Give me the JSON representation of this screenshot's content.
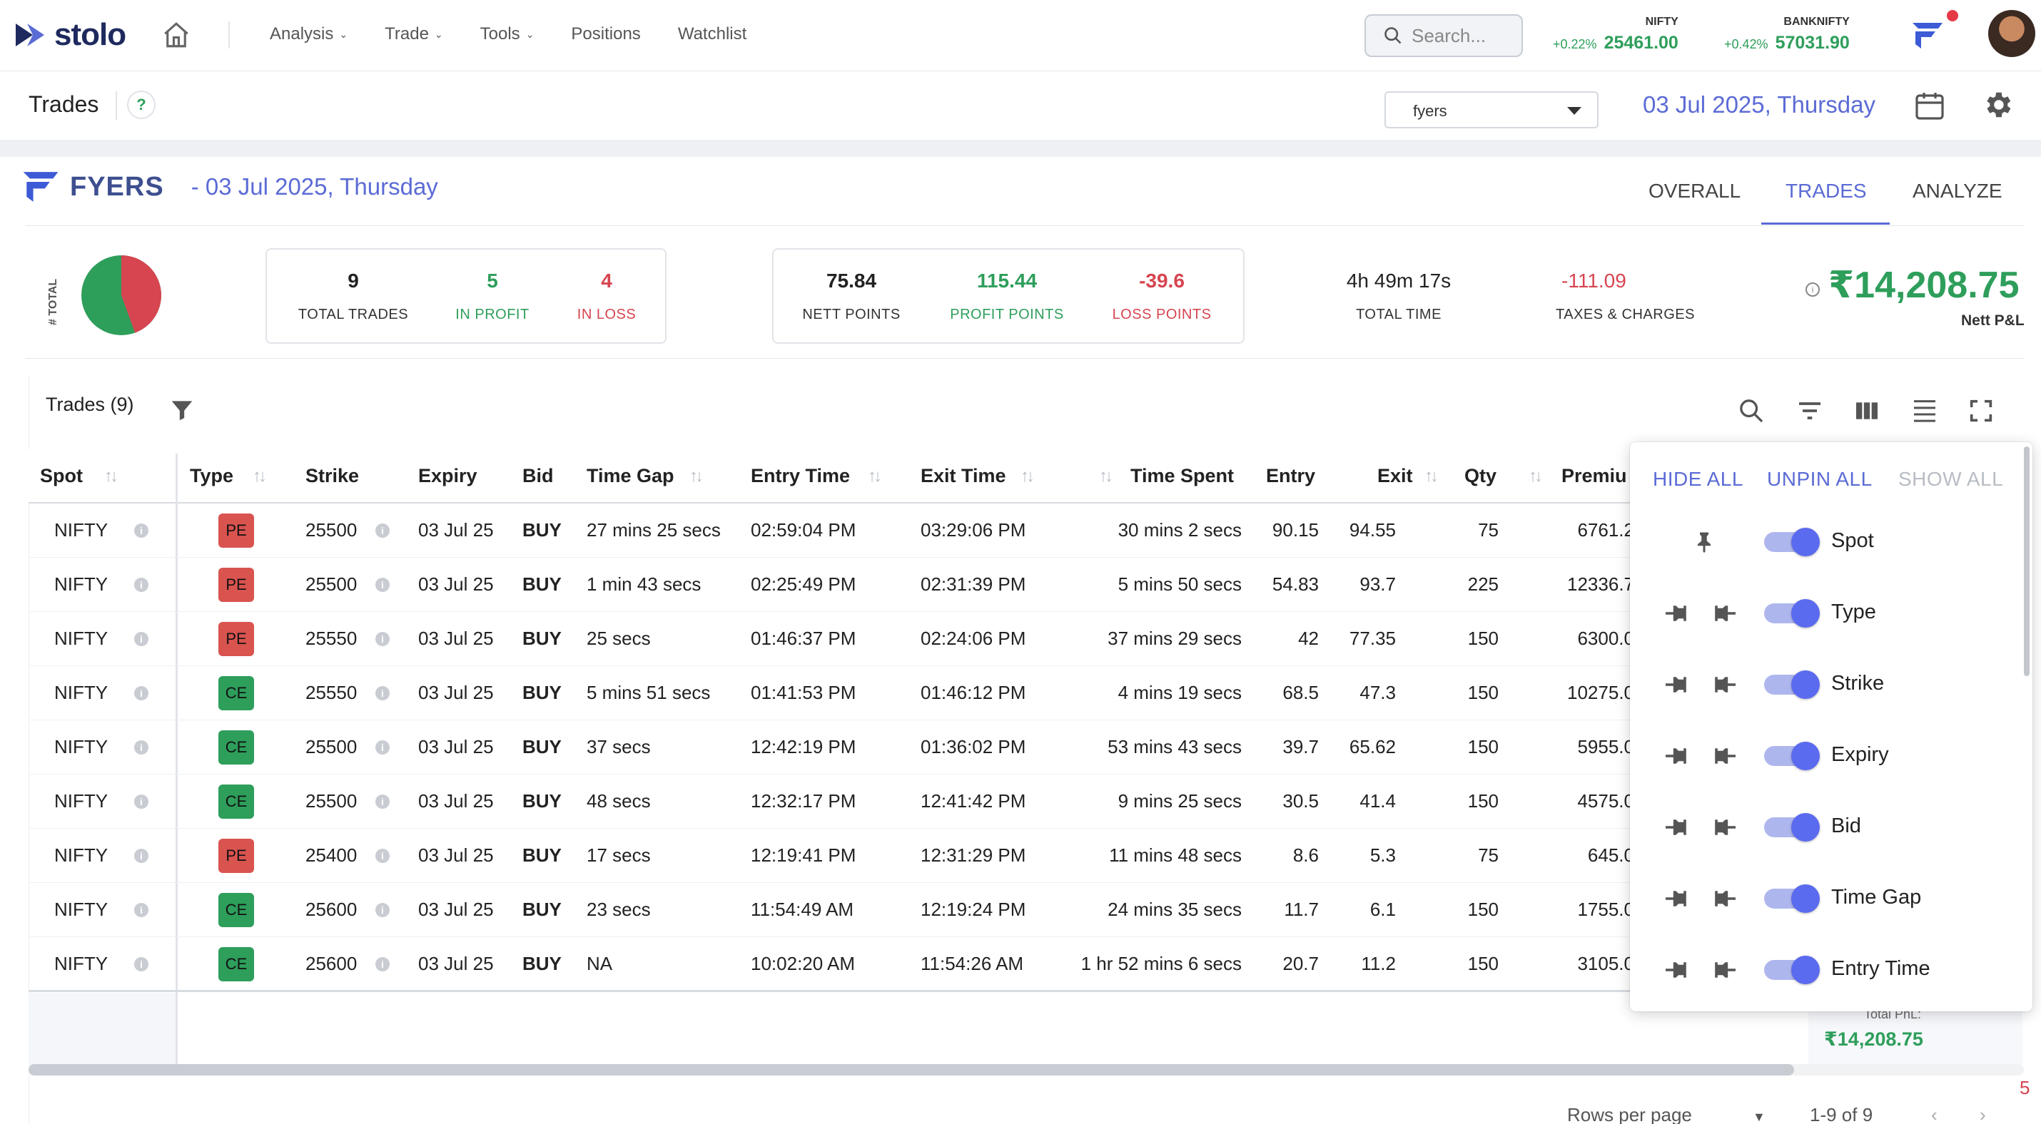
{
  "app": {
    "logo_text": "stolo"
  },
  "nav": {
    "items": [
      "Analysis",
      "Trade",
      "Tools",
      "Positions",
      "Watchlist"
    ]
  },
  "search": {
    "placeholder": "Search..."
  },
  "indices": [
    {
      "name": "NIFTY",
      "change": "+0.22%",
      "value": "25461.00"
    },
    {
      "name": "BANKNIFTY",
      "change": "+0.42%",
      "value": "57031.90"
    }
  ],
  "page": {
    "title": "Trades",
    "help": "?",
    "broker": "fyers",
    "date": "03 Jul 2025, Thursday"
  },
  "card": {
    "broker_label": "FYERS",
    "date_label": "- 03 Jul 2025, Thursday",
    "tabs": [
      "OVERALL",
      "TRADES",
      "ANALYZE"
    ],
    "active_tab": "TRADES"
  },
  "summary": {
    "pie_axis_label": "# TOTAL",
    "pie": {
      "in_profit": 5,
      "in_loss": 4
    },
    "total_trades": {
      "value": "9",
      "label": "TOTAL TRADES"
    },
    "in_profit": {
      "value": "5",
      "label": "IN PROFIT"
    },
    "in_loss": {
      "value": "4",
      "label": "IN LOSS"
    },
    "nett_points": {
      "value": "75.84",
      "label": "NETT POINTS"
    },
    "profit_points": {
      "value": "115.44",
      "label": "PROFIT POINTS"
    },
    "loss_points": {
      "value": "-39.6",
      "label": "LOSS POINTS"
    },
    "total_time": {
      "value": "4h 49m 17s",
      "label": "TOTAL TIME"
    },
    "taxes": {
      "value": "-111.09",
      "label": "TAXES & CHARGES"
    },
    "nett_pnl": {
      "value": "₹14,208.75",
      "label": "Nett P&L"
    }
  },
  "table": {
    "title": "Trades (9)",
    "columns": [
      "Spot",
      "Type",
      "Strike",
      "Expiry",
      "Bid",
      "Time Gap",
      "Entry Time",
      "Exit Time",
      "Time Spent",
      "Entry",
      "Exit",
      "Qty",
      "Premiu"
    ],
    "rows": [
      [
        "NIFTY",
        "PE",
        "25500",
        "03 Jul 25",
        "BUY",
        "27 mins 25 secs",
        "02:59:04 PM",
        "03:29:06 PM",
        "30 mins 2 secs",
        "90.15",
        "94.55",
        "75",
        "6761.2"
      ],
      [
        "NIFTY",
        "PE",
        "25500",
        "03 Jul 25",
        "BUY",
        "1 min 43 secs",
        "02:25:49 PM",
        "02:31:39 PM",
        "5 mins 50 secs",
        "54.83",
        "93.7",
        "225",
        "12336.7"
      ],
      [
        "NIFTY",
        "PE",
        "25550",
        "03 Jul 25",
        "BUY",
        "25 secs",
        "01:46:37 PM",
        "02:24:06 PM",
        "37 mins 29 secs",
        "42",
        "77.35",
        "150",
        "6300.0"
      ],
      [
        "NIFTY",
        "CE",
        "25550",
        "03 Jul 25",
        "BUY",
        "5 mins 51 secs",
        "01:41:53 PM",
        "01:46:12 PM",
        "4 mins 19 secs",
        "68.5",
        "47.3",
        "150",
        "10275.0"
      ],
      [
        "NIFTY",
        "CE",
        "25500",
        "03 Jul 25",
        "BUY",
        "37 secs",
        "12:42:19 PM",
        "01:36:02 PM",
        "53 mins 43 secs",
        "39.7",
        "65.62",
        "150",
        "5955.0"
      ],
      [
        "NIFTY",
        "CE",
        "25500",
        "03 Jul 25",
        "BUY",
        "48 secs",
        "12:32:17 PM",
        "12:41:42 PM",
        "9 mins 25 secs",
        "30.5",
        "41.4",
        "150",
        "4575.0"
      ],
      [
        "NIFTY",
        "PE",
        "25400",
        "03 Jul 25",
        "BUY",
        "17 secs",
        "12:19:41 PM",
        "12:31:29 PM",
        "11 mins 48 secs",
        "8.6",
        "5.3",
        "75",
        "645.0"
      ],
      [
        "NIFTY",
        "CE",
        "25600",
        "03 Jul 25",
        "BUY",
        "23 secs",
        "11:54:49 AM",
        "12:19:24 PM",
        "24 mins 35 secs",
        "11.7",
        "6.1",
        "150",
        "1755.0"
      ],
      [
        "NIFTY",
        "CE",
        "25600",
        "03 Jul 25",
        "BUY",
        "NA",
        "10:02:20 AM",
        "11:54:26 AM",
        "1 hr 52 mins 6 secs",
        "20.7",
        "11.2",
        "150",
        "3105.0"
      ]
    ],
    "total_pnl_label": "Total PnL:",
    "total_pnl_value": "₹14,208.75",
    "footer": {
      "rows_per_page": "Rows per page",
      "range": "1-9 of 9",
      "side_number": "5"
    }
  },
  "column_panel": {
    "hide_all": "HIDE ALL",
    "unpin_all": "UNPIN ALL",
    "show_all": "SHOW ALL",
    "columns": [
      "Spot",
      "Type",
      "Strike",
      "Expiry",
      "Bid",
      "Time Gap",
      "Entry Time"
    ]
  },
  "colors": {
    "accent": "#5b6bd5",
    "profit": "#2e9e5b",
    "loss": "#d64550",
    "pe_badge": "#d9534f",
    "ce_badge": "#2e9e5b"
  },
  "icons": [
    "home-icon",
    "chevron-down-icon",
    "search-icon",
    "brand-icon",
    "calendar-icon",
    "gear-icon",
    "filter-icon",
    "filter-list-icon",
    "columns-icon",
    "density-icon",
    "fullscreen-icon",
    "info-icon",
    "pin-icon",
    "pin-left-icon",
    "pin-right-icon",
    "chevron-left-icon",
    "chevron-right-icon"
  ]
}
